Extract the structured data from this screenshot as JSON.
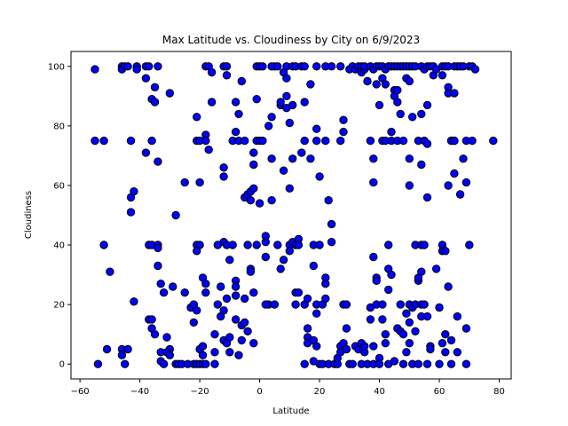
{
  "chart_data": {
    "type": "scatter",
    "title": "Max Latitude vs. Cloudiness by City on 6/9/2023",
    "xlabel": "Latitude",
    "ylabel": "Cloudiness",
    "xlim": [
      -63,
      84
    ],
    "ylim": [
      -5,
      105
    ],
    "x_ticks": [
      -60,
      -40,
      -20,
      0,
      20,
      40,
      60,
      80
    ],
    "y_ticks": [
      0,
      20,
      40,
      60,
      80,
      100
    ],
    "grid": false,
    "legend": "none",
    "marker_color": "#0000ff",
    "marker_edge_color": "#000000",
    "points": [
      [
        -55,
        99
      ],
      [
        -55,
        75
      ],
      [
        -54,
        0
      ],
      [
        -52,
        75
      ],
      [
        -52,
        40
      ],
      [
        -50,
        31
      ],
      [
        -51,
        5
      ],
      [
        -46,
        100
      ],
      [
        -46,
        99
      ],
      [
        -45,
        100
      ],
      [
        -44,
        100
      ],
      [
        -46,
        5
      ],
      [
        -46,
        3
      ],
      [
        -45,
        0
      ],
      [
        -44,
        5
      ],
      [
        -43,
        75
      ],
      [
        -43,
        56
      ],
      [
        -42,
        58
      ],
      [
        -43,
        51
      ],
      [
        -42,
        21
      ],
      [
        -41,
        100
      ],
      [
        -41,
        99
      ],
      [
        -38,
        100
      ],
      [
        -37,
        100
      ],
      [
        -38,
        96
      ],
      [
        -38,
        71
      ],
      [
        -36,
        89
      ],
      [
        -35,
        93
      ],
      [
        -35,
        88
      ],
      [
        -34,
        100
      ],
      [
        -34,
        68
      ],
      [
        -36,
        75
      ],
      [
        -37,
        40
      ],
      [
        -36,
        40
      ],
      [
        -34,
        40
      ],
      [
        -34,
        39
      ],
      [
        -34,
        33
      ],
      [
        -33,
        27
      ],
      [
        -33,
        4
      ],
      [
        -32,
        24
      ],
      [
        -31,
        9
      ],
      [
        -30,
        5
      ],
      [
        -37,
        15
      ],
      [
        -36,
        15
      ],
      [
        -36,
        12
      ],
      [
        -35,
        10
      ],
      [
        -33,
        1
      ],
      [
        -32,
        0
      ],
      [
        -31,
        4
      ],
      [
        -30,
        3
      ],
      [
        -30,
        91
      ],
      [
        -29,
        26
      ],
      [
        -28,
        50
      ],
      [
        -28,
        0
      ],
      [
        -27,
        0
      ],
      [
        -26,
        0
      ],
      [
        -25,
        24
      ],
      [
        -25,
        61
      ],
      [
        -24,
        0
      ],
      [
        -23,
        19
      ],
      [
        -22,
        20
      ],
      [
        -21,
        83
      ],
      [
        -21,
        75
      ],
      [
        -20,
        61
      ],
      [
        -20,
        75
      ],
      [
        -21,
        40
      ],
      [
        -20,
        40
      ],
      [
        -21,
        38
      ],
      [
        -22,
        14
      ],
      [
        -21,
        18
      ],
      [
        -20,
        5
      ],
      [
        -22,
        0
      ],
      [
        -21,
        0
      ],
      [
        -20,
        0
      ],
      [
        -19,
        0
      ],
      [
        -18,
        0
      ],
      [
        -19,
        3
      ],
      [
        -19,
        6
      ],
      [
        -19,
        29
      ],
      [
        -18,
        27
      ],
      [
        -18,
        24
      ],
      [
        -18,
        100
      ],
      [
        -18,
        77
      ],
      [
        -18,
        75
      ],
      [
        -17,
        72
      ],
      [
        -17,
        100
      ],
      [
        -16,
        98
      ],
      [
        -16,
        88
      ],
      [
        -15,
        0
      ],
      [
        -15,
        4
      ],
      [
        -15,
        10
      ],
      [
        -14,
        40
      ],
      [
        -14,
        20
      ],
      [
        -13,
        16
      ],
      [
        -13,
        26
      ],
      [
        -12,
        63
      ],
      [
        -12,
        66
      ],
      [
        -12,
        41
      ],
      [
        -11,
        40
      ],
      [
        -11,
        22
      ],
      [
        -12,
        18
      ],
      [
        -12,
        8
      ],
      [
        -11,
        7
      ],
      [
        -11,
        97
      ],
      [
        -12,
        100
      ],
      [
        -11,
        100
      ],
      [
        -10,
        4
      ],
      [
        -10,
        9
      ],
      [
        -10,
        35
      ],
      [
        -9,
        40
      ],
      [
        -9,
        75
      ],
      [
        -8,
        88
      ],
      [
        -8,
        78
      ],
      [
        -8,
        28
      ],
      [
        -8,
        26
      ],
      [
        -8,
        23
      ],
      [
        -8,
        15
      ],
      [
        -7,
        3
      ],
      [
        -6,
        8
      ],
      [
        -7,
        84
      ],
      [
        -7,
        75
      ],
      [
        -6,
        95
      ],
      [
        -5,
        75
      ],
      [
        -5,
        56
      ],
      [
        -5,
        22
      ],
      [
        -6,
        13
      ],
      [
        -5,
        14
      ],
      [
        -4,
        11
      ],
      [
        -4,
        40
      ],
      [
        -4,
        57
      ],
      [
        -3,
        58
      ],
      [
        -3,
        55
      ],
      [
        -2,
        59
      ],
      [
        -2,
        7
      ],
      [
        -2,
        24
      ],
      [
        -3,
        32
      ],
      [
        -3,
        31
      ],
      [
        -2,
        71
      ],
      [
        -2,
        67
      ],
      [
        -1,
        89
      ],
      [
        -1,
        75
      ],
      [
        -1,
        100
      ],
      [
        0,
        100
      ],
      [
        0,
        75
      ],
      [
        0,
        54
      ],
      [
        -1,
        40
      ],
      [
        1,
        75
      ],
      [
        1,
        100
      ],
      [
        2,
        41
      ],
      [
        2,
        43
      ],
      [
        2,
        36
      ],
      [
        3,
        80
      ],
      [
        3,
        20
      ],
      [
        2,
        20
      ],
      [
        4,
        83
      ],
      [
        4,
        69
      ],
      [
        4,
        55
      ],
      [
        5,
        100
      ],
      [
        4,
        100
      ],
      [
        5,
        20
      ],
      [
        6,
        40
      ],
      [
        6,
        100
      ],
      [
        7,
        87
      ],
      [
        7,
        88
      ],
      [
        7,
        32
      ],
      [
        8,
        35
      ],
      [
        8,
        65
      ],
      [
        8,
        98
      ],
      [
        9,
        100
      ],
      [
        9,
        86
      ],
      [
        9,
        90
      ],
      [
        9,
        96
      ],
      [
        10,
        81
      ],
      [
        10,
        59
      ],
      [
        10,
        40
      ],
      [
        10,
        38
      ],
      [
        11,
        100
      ],
      [
        11,
        87
      ],
      [
        11,
        69
      ],
      [
        11,
        41
      ],
      [
        12,
        100
      ],
      [
        12,
        40
      ],
      [
        12,
        24
      ],
      [
        12,
        20
      ],
      [
        13,
        42
      ],
      [
        13,
        40
      ],
      [
        13,
        24
      ],
      [
        14,
        71
      ],
      [
        14,
        100
      ],
      [
        15,
        100
      ],
      [
        15,
        88
      ],
      [
        15,
        75
      ],
      [
        15,
        0
      ],
      [
        15,
        20
      ],
      [
        16,
        22
      ],
      [
        16,
        12
      ],
      [
        16,
        9
      ],
      [
        16,
        7
      ],
      [
        17,
        94
      ],
      [
        17,
        69
      ],
      [
        18,
        40
      ],
      [
        18,
        33
      ],
      [
        18,
        8
      ],
      [
        18,
        1
      ],
      [
        19,
        100
      ],
      [
        19,
        79
      ],
      [
        19,
        75
      ],
      [
        19,
        20
      ],
      [
        19,
        17
      ],
      [
        19,
        6
      ],
      [
        20,
        63
      ],
      [
        20,
        40
      ],
      [
        20,
        0
      ],
      [
        21,
        0
      ],
      [
        21,
        20
      ],
      [
        22,
        75
      ],
      [
        22,
        100
      ],
      [
        22,
        27
      ],
      [
        22,
        22
      ],
      [
        22,
        29
      ],
      [
        23,
        0
      ],
      [
        23,
        55
      ],
      [
        24,
        47
      ],
      [
        24,
        41
      ],
      [
        24,
        100
      ],
      [
        25,
        0
      ],
      [
        26,
        0
      ],
      [
        26,
        2
      ],
      [
        27,
        100
      ],
      [
        27,
        75
      ],
      [
        27,
        6
      ],
      [
        27,
        4
      ],
      [
        28,
        82
      ],
      [
        28,
        78
      ],
      [
        28,
        20
      ],
      [
        28,
        7
      ],
      [
        29,
        20
      ],
      [
        29,
        12
      ],
      [
        30,
        0
      ],
      [
        29,
        5
      ],
      [
        30,
        99
      ],
      [
        31,
        100
      ],
      [
        31,
        0
      ],
      [
        32,
        99
      ],
      [
        32,
        6
      ],
      [
        33,
        5
      ],
      [
        33,
        100
      ],
      [
        34,
        100
      ],
      [
        34,
        98
      ],
      [
        34,
        7
      ],
      [
        34,
        0
      ],
      [
        35,
        99
      ],
      [
        35,
        100
      ],
      [
        35,
        4
      ],
      [
        35,
        6
      ],
      [
        36,
        95
      ],
      [
        36,
        0
      ],
      [
        37,
        100
      ],
      [
        37,
        75
      ],
      [
        37,
        19
      ],
      [
        37,
        15
      ],
      [
        38,
        99
      ],
      [
        38,
        69
      ],
      [
        38,
        61
      ],
      [
        38,
        36
      ],
      [
        38,
        6
      ],
      [
        38,
        0
      ],
      [
        39,
        100
      ],
      [
        39,
        94
      ],
      [
        39,
        29
      ],
      [
        39,
        28
      ],
      [
        39,
        20
      ],
      [
        40,
        100
      ],
      [
        40,
        87
      ],
      [
        40,
        2
      ],
      [
        40,
        0
      ],
      [
        41,
        100
      ],
      [
        41,
        96
      ],
      [
        41,
        75
      ],
      [
        41,
        20
      ],
      [
        41,
        15
      ],
      [
        42,
        99
      ],
      [
        42,
        94
      ],
      [
        42,
        75
      ],
      [
        42,
        10
      ],
      [
        42,
        7
      ],
      [
        43,
        100
      ],
      [
        43,
        40
      ],
      [
        43,
        32
      ],
      [
        43,
        25
      ],
      [
        43,
        0
      ],
      [
        44,
        100
      ],
      [
        44,
        78
      ],
      [
        44,
        75
      ],
      [
        44,
        30
      ],
      [
        45,
        100
      ],
      [
        45,
        92
      ],
      [
        45,
        90
      ],
      [
        45,
        1
      ],
      [
        46,
        100
      ],
      [
        46,
        92
      ],
      [
        46,
        88
      ],
      [
        46,
        75
      ],
      [
        46,
        12
      ],
      [
        47,
        100
      ],
      [
        47,
        84
      ],
      [
        47,
        20
      ],
      [
        47,
        11
      ],
      [
        48,
        100
      ],
      [
        48,
        75
      ],
      [
        48,
        10
      ],
      [
        48,
        0
      ],
      [
        49,
        100
      ],
      [
        49,
        96
      ],
      [
        49,
        17
      ],
      [
        49,
        4
      ],
      [
        50,
        100
      ],
      [
        50,
        95
      ],
      [
        50,
        69
      ],
      [
        50,
        60
      ],
      [
        50,
        20
      ],
      [
        50,
        14
      ],
      [
        50,
        7
      ],
      [
        51,
        100
      ],
      [
        51,
        83
      ],
      [
        51,
        19
      ],
      [
        51,
        0
      ],
      [
        52,
        100
      ],
      [
        52,
        40
      ],
      [
        52,
        20
      ],
      [
        52,
        11
      ],
      [
        53,
        75
      ],
      [
        53,
        28
      ],
      [
        53,
        29
      ],
      [
        53,
        0
      ],
      [
        54,
        100
      ],
      [
        54,
        84
      ],
      [
        54,
        67
      ],
      [
        54,
        40
      ],
      [
        54,
        31
      ],
      [
        54,
        20
      ],
      [
        54,
        16
      ],
      [
        55,
        99
      ],
      [
        55,
        75
      ],
      [
        55,
        40
      ],
      [
        55,
        20
      ],
      [
        56,
        100
      ],
      [
        56,
        74
      ],
      [
        56,
        87
      ],
      [
        56,
        56
      ],
      [
        56,
        16
      ],
      [
        56,
        0
      ],
      [
        57,
        100
      ],
      [
        57,
        6
      ],
      [
        57,
        5
      ],
      [
        58,
        100
      ],
      [
        58,
        97
      ],
      [
        59,
        99
      ],
      [
        59,
        32
      ],
      [
        60,
        19
      ],
      [
        60,
        0
      ],
      [
        61,
        100
      ],
      [
        61,
        97
      ],
      [
        61,
        40
      ],
      [
        61,
        38
      ],
      [
        61,
        7
      ],
      [
        62,
        100
      ],
      [
        62,
        38
      ],
      [
        62,
        10
      ],
      [
        62,
        4
      ],
      [
        63,
        100
      ],
      [
        63,
        93
      ],
      [
        63,
        91
      ],
      [
        63,
        60
      ],
      [
        63,
        26
      ],
      [
        64,
        75
      ],
      [
        64,
        75
      ],
      [
        64,
        8
      ],
      [
        64,
        0
      ],
      [
        65,
        100
      ],
      [
        65,
        91
      ],
      [
        65,
        75
      ],
      [
        65,
        75
      ],
      [
        65,
        64
      ],
      [
        66,
        100
      ],
      [
        66,
        16
      ],
      [
        66,
        4
      ],
      [
        67,
        100
      ],
      [
        67,
        57
      ],
      [
        68,
        100
      ],
      [
        68,
        69
      ],
      [
        69,
        75
      ],
      [
        69,
        61
      ],
      [
        69,
        12
      ],
      [
        69,
        0
      ],
      [
        70,
        100
      ],
      [
        70,
        40
      ],
      [
        71,
        100
      ],
      [
        71,
        75
      ],
      [
        72,
        99
      ],
      [
        78,
        75
      ]
    ]
  }
}
